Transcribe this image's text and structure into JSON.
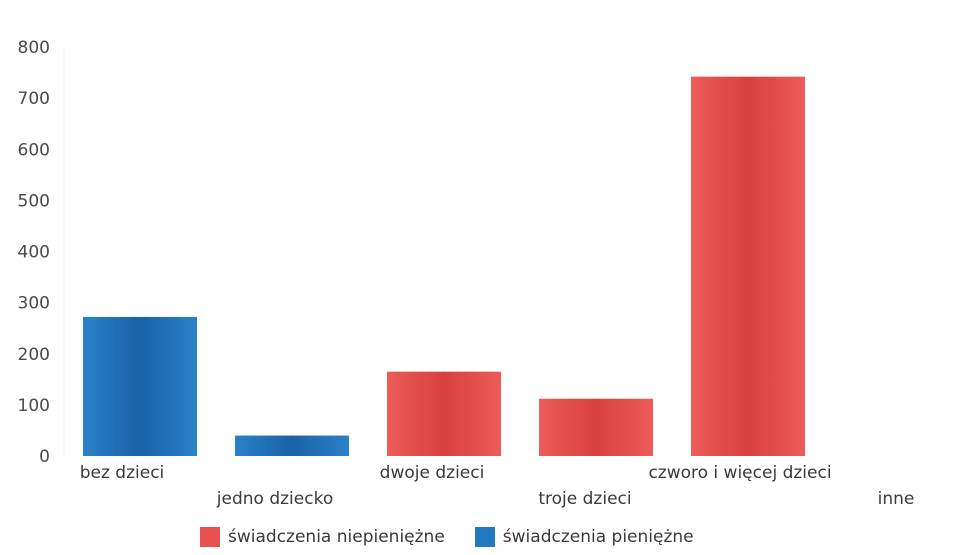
{
  "chart_data": {
    "type": "bar",
    "categories": [
      "bez dzieci",
      "jedno dziecko",
      "dwoje dzieci",
      "troje dzieci",
      "czworo i więcej dzieci",
      "inne"
    ],
    "series": [
      {
        "name": "świadczenia niepieniężne",
        "color": "#e8504f",
        "values": [
          null,
          null,
          165,
          112,
          742,
          null
        ]
      },
      {
        "name": "świadczenia pieniężne",
        "color": "#2478c0",
        "values": [
          272,
          40,
          null,
          null,
          null,
          null
        ]
      }
    ],
    "ylim": [
      0,
      800
    ],
    "yticks": [
      0,
      100,
      200,
      300,
      400,
      500,
      600,
      700,
      800
    ],
    "title": "",
    "xlabel": "",
    "ylabel": "",
    "grid": false,
    "legend_position": "bottom"
  }
}
